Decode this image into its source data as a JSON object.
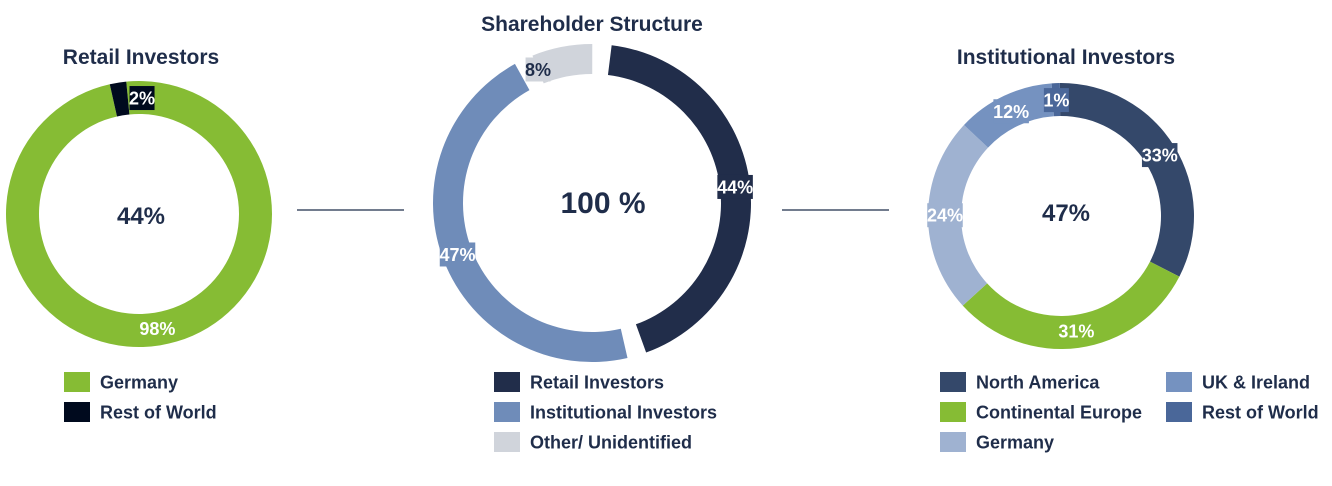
{
  "chart_data": [
    {
      "type": "pie",
      "title": "Retail Investors",
      "center_label": "44%",
      "slices": [
        {
          "name": "Germany",
          "value": 98,
          "label": "98%",
          "color": "#86bc34"
        },
        {
          "name": "Rest of World",
          "value": 2,
          "label": "2%",
          "color": "#000a1e"
        }
      ]
    },
    {
      "type": "pie",
      "title": "Shareholder Structure",
      "center_label": "100 %",
      "slices": [
        {
          "name": "Retail Investors",
          "value": 44,
          "label": "44%",
          "color": "#212d4a"
        },
        {
          "name": "Institutional Investors",
          "value": 47,
          "label": "47%",
          "color": "#6f8cb9"
        },
        {
          "name": "Other/ Unidentified",
          "value": 8,
          "label": "8%",
          "color": "#d0d4db"
        }
      ]
    },
    {
      "type": "pie",
      "title": "Institutional Investors",
      "center_label": "47%",
      "slices": [
        {
          "name": "North America",
          "value": 33,
          "label": "33%",
          "color": "#34486a"
        },
        {
          "name": "Continental Europe",
          "value": 31,
          "label": "31%",
          "color": "#86bc34"
        },
        {
          "name": "Germany",
          "value": 24,
          "label": "24%",
          "color": "#9fb2d1"
        },
        {
          "name": "UK & Ireland",
          "value": 12,
          "label": "12%",
          "color": "#7592c0"
        },
        {
          "name": "Rest of World",
          "value": 1,
          "label": "1%",
          "color": "#4a6799"
        }
      ]
    }
  ]
}
